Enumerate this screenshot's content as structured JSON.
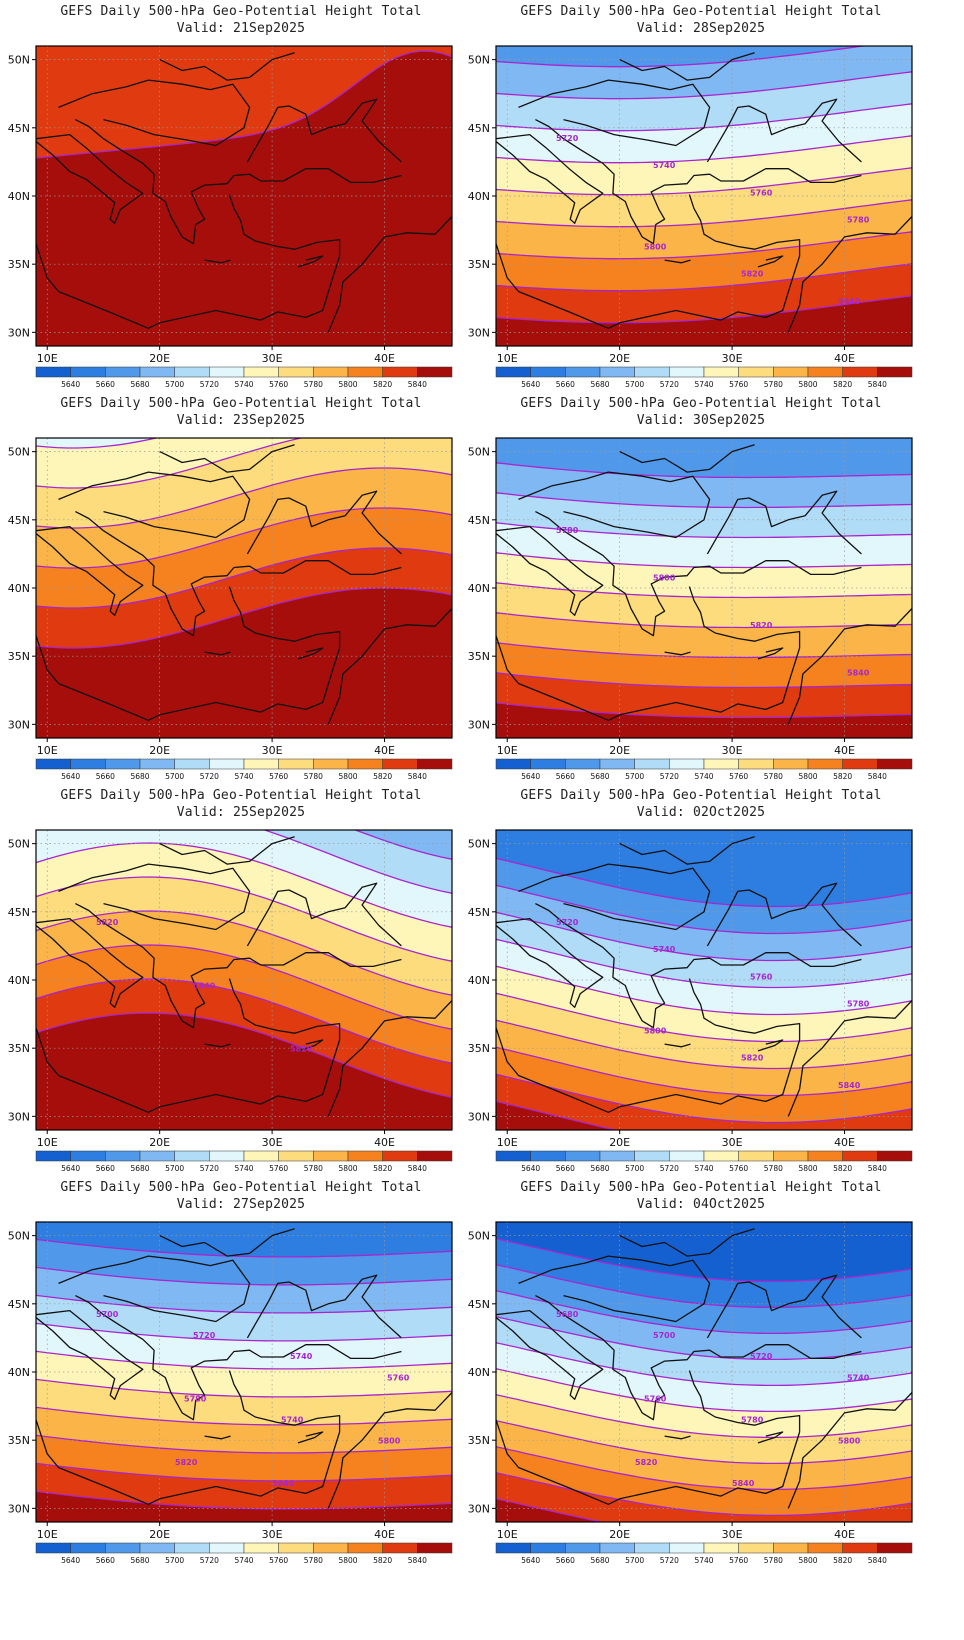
{
  "panel_title": "GEFS Daily 500-hPa Geo-Potential Height Total",
  "valid_prefix": "Valid:",
  "axes": {
    "lon_labels": [
      "10E",
      "20E",
      "30E",
      "40E"
    ],
    "lat_labels": [
      "50N",
      "45N",
      "40N",
      "35N",
      "30N"
    ],
    "lon_range": [
      9,
      46
    ],
    "lat_range": [
      29,
      51
    ]
  },
  "colorbar": {
    "labels": [
      "5640",
      "5660",
      "5680",
      "5700",
      "5720",
      "5740",
      "5760",
      "5780",
      "5800",
      "5820",
      "5840"
    ],
    "colors": [
      "#1560d0",
      "#2e7de0",
      "#5098ea",
      "#7fb8f2",
      "#b0dcf8",
      "#e2f7fb",
      "#fdf6b8",
      "#fddc7e",
      "#fbb447",
      "#f5821f",
      "#e03a10",
      "#a60e0c"
    ]
  },
  "contour_color": "#a826cf",
  "panels": [
    {
      "valid": "21Sep2025",
      "state": "ridge",
      "labels": []
    },
    {
      "valid": "28Sep2025",
      "state": "zonal_cool",
      "labels": [
        "5720",
        "5740",
        "5760",
        "5780",
        "5800",
        "5820",
        "5840"
      ]
    },
    {
      "valid": "23Sep2025",
      "state": "warm_mixed",
      "labels": []
    },
    {
      "valid": "30Sep2025",
      "state": "zonal_cooler",
      "labels": [
        "5780",
        "5800",
        "5820",
        "5840"
      ]
    },
    {
      "valid": "25Sep2025",
      "state": "trough_ridge",
      "labels": [
        "5820",
        "5840",
        "5820"
      ]
    },
    {
      "valid": "02Oct2025",
      "state": "trough_deep",
      "labels": [
        "5720",
        "5740",
        "5760",
        "5780",
        "5800",
        "5820",
        "5840"
      ]
    },
    {
      "valid": "27Sep2025",
      "state": "zonal_cool2",
      "labels": [
        "5700",
        "5720",
        "5740",
        "5760",
        "5780",
        "5740",
        "5800",
        "5820",
        "5840"
      ]
    },
    {
      "valid": "04Oct2025",
      "state": "trough_deep2",
      "labels": [
        "5680",
        "5700",
        "5720",
        "5740",
        "5760",
        "5780",
        "5800",
        "5820",
        "5840"
      ]
    }
  ]
}
